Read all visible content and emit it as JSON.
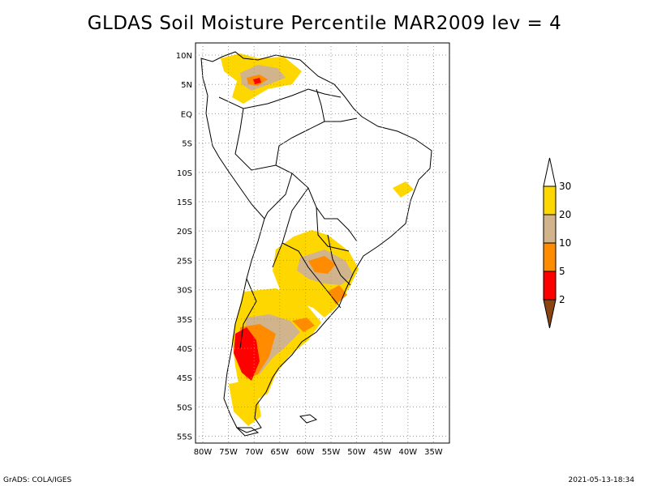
{
  "title": "GLDAS Soil Moisture Percentile MAR2009 lev = 4",
  "footer": {
    "left": "GrADS: COLA/IGES",
    "right": "2021-05-13-18:34"
  },
  "axes": {
    "lat_labels": [
      "10N",
      "5N",
      "EQ",
      "5S",
      "10S",
      "15S",
      "20S",
      "25S",
      "30S",
      "35S",
      "40S",
      "45S",
      "50S",
      "55S"
    ],
    "lon_labels": [
      "80W",
      "75W",
      "70W",
      "65W",
      "60W",
      "55W",
      "50W",
      "45W",
      "40W",
      "35W"
    ]
  },
  "legend": {
    "bins": [
      {
        "label": "2",
        "color": "#8b4513"
      },
      {
        "label": "5",
        "color": "#ff0000"
      },
      {
        "label": "10",
        "color": "#ff8c00"
      },
      {
        "label": "20",
        "color": "#d2b48c"
      },
      {
        "label": "30",
        "color": "#ffd700"
      }
    ],
    "top_color": "#ffffff"
  },
  "colors": {
    "gold": "#ffd700",
    "tan": "#d2b48c",
    "orange": "#ff8c00",
    "red": "#ff0000",
    "border": "#000000",
    "grid": "#999999"
  }
}
